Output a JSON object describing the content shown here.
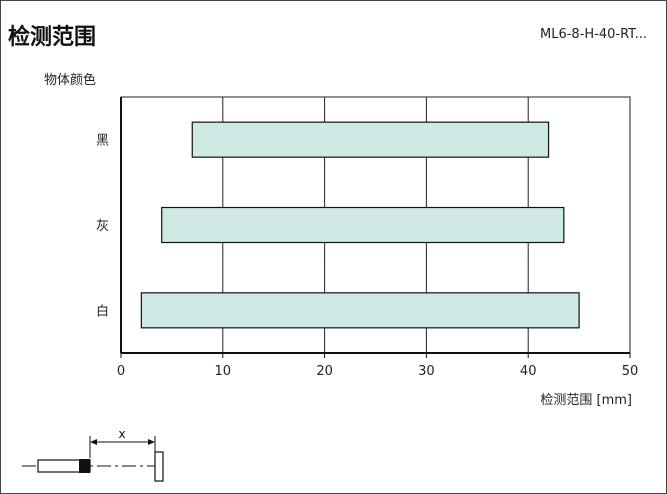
{
  "header": {
    "title": "检测范围",
    "model": "ML6-8-H-40-RT..."
  },
  "chart_data": {
    "type": "bar",
    "orientation": "horizontal",
    "title": "检测范围",
    "ylabel": "物体颜色",
    "xlabel": "检测范围 [mm]",
    "categories": [
      "黑",
      "灰",
      "白"
    ],
    "ranges": [
      [
        7,
        42
      ],
      [
        4,
        43.5
      ],
      [
        2,
        45
      ]
    ],
    "xlim": [
      0,
      50
    ],
    "xticks": [
      0,
      10,
      20,
      30,
      40,
      50
    ],
    "grid": "vertical",
    "bar_color": "#cfe9e5"
  },
  "diagram": {
    "distance_label": "x"
  }
}
